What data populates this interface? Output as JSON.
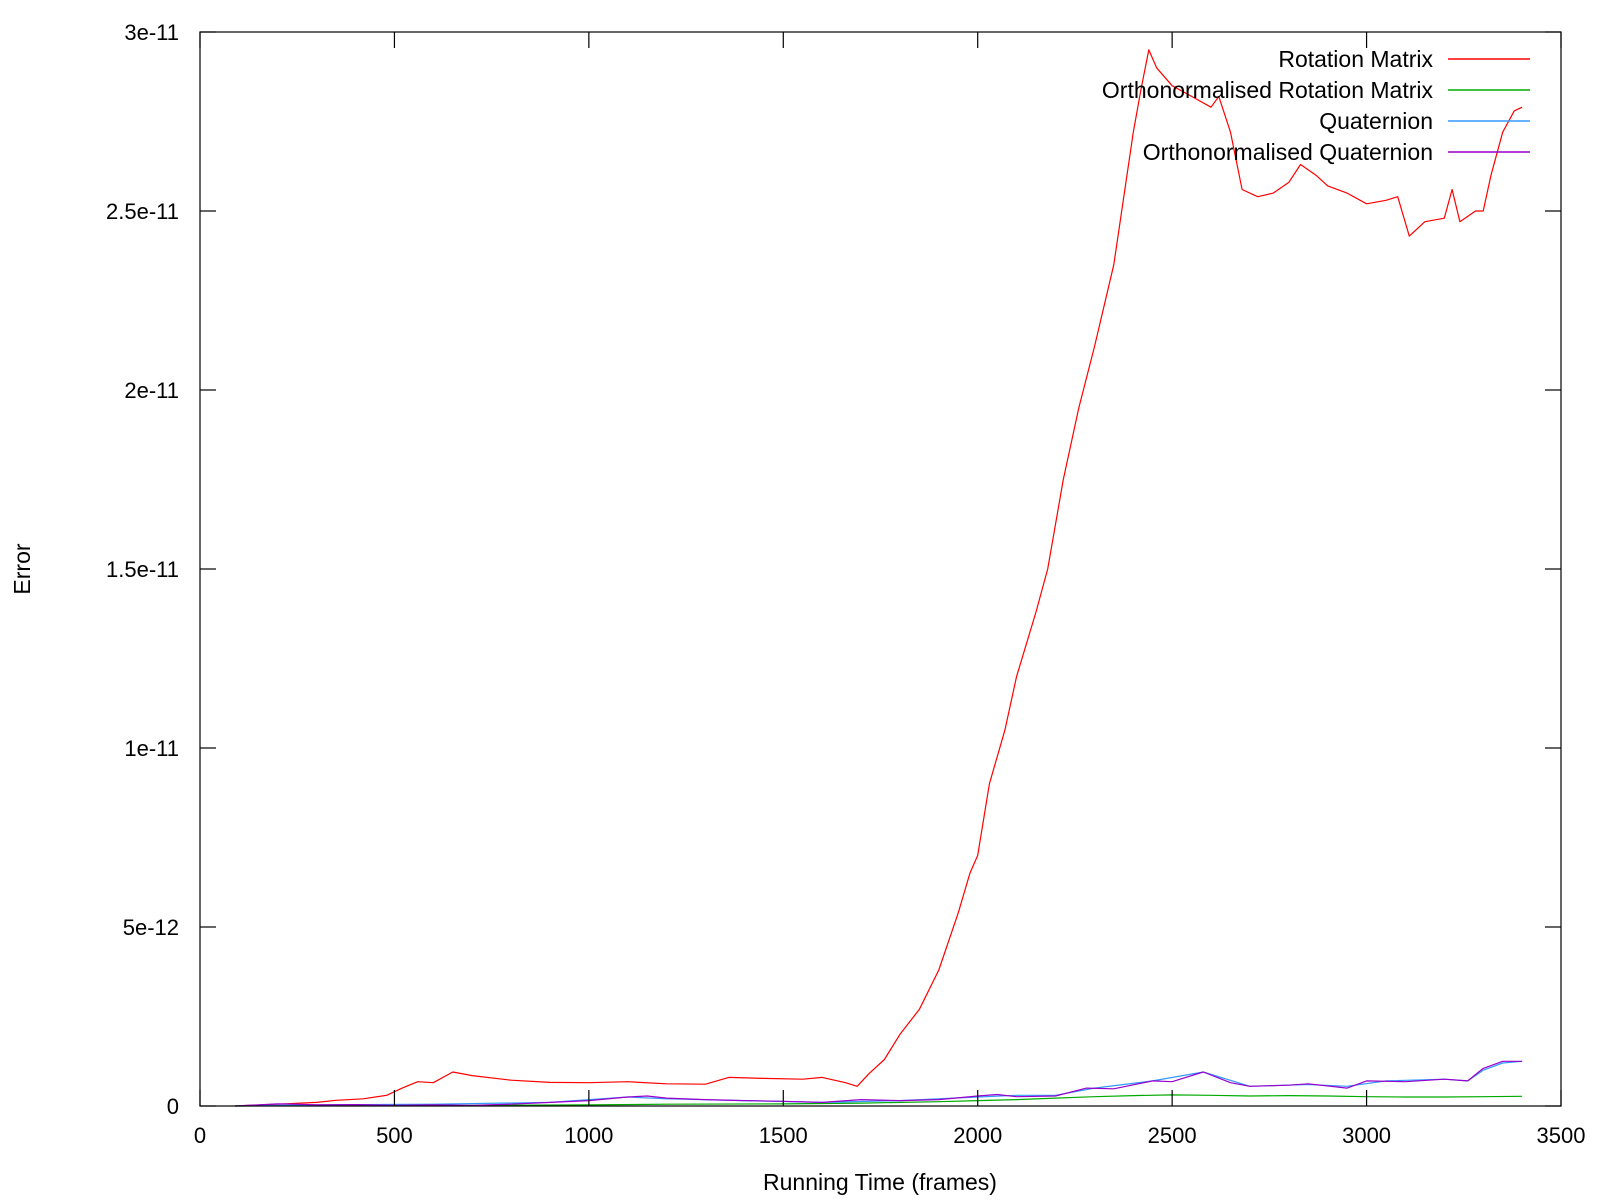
{
  "chart_data": {
    "type": "line",
    "title": "",
    "xlabel": "Running Time (frames)",
    "ylabel": "Error",
    "xlim": [
      0,
      3500
    ],
    "ylim": [
      0,
      3e-11
    ],
    "x_ticks": [
      {
        "value": 0,
        "label": "0"
      },
      {
        "value": 500,
        "label": "500"
      },
      {
        "value": 1000,
        "label": "1000"
      },
      {
        "value": 1500,
        "label": "1500"
      },
      {
        "value": 2000,
        "label": "2000"
      },
      {
        "value": 2500,
        "label": "2500"
      },
      {
        "value": 3000,
        "label": "3000"
      },
      {
        "value": 3500,
        "label": "3500"
      }
    ],
    "y_ticks": [
      {
        "value": 0,
        "label": "0"
      },
      {
        "value": 5e-12,
        "label": "5e-12"
      },
      {
        "value": 1e-11,
        "label": "1e-11"
      },
      {
        "value": 1.5e-11,
        "label": "1.5e-11"
      },
      {
        "value": 2e-11,
        "label": "2e-11"
      },
      {
        "value": 2.5e-11,
        "label": "2.5e-11"
      },
      {
        "value": 3e-11,
        "label": "3e-11"
      }
    ],
    "grid": false,
    "legend_position": "top-right",
    "series": [
      {
        "name": "Rotation Matrix",
        "color": "#ff0000",
        "points": [
          [
            90,
            0
          ],
          [
            200,
            5e-14
          ],
          [
            300,
            1e-13
          ],
          [
            350,
            1.6e-13
          ],
          [
            420,
            2e-13
          ],
          [
            480,
            3e-13
          ],
          [
            520,
            5e-13
          ],
          [
            560,
            6.8e-13
          ],
          [
            600,
            6.5e-13
          ],
          [
            650,
            9.5e-13
          ],
          [
            700,
            8.5e-13
          ],
          [
            800,
            7.2e-13
          ],
          [
            900,
            6.6e-13
          ],
          [
            1000,
            6.5e-13
          ],
          [
            1100,
            6.8e-13
          ],
          [
            1200,
            6.2e-13
          ],
          [
            1300,
            6.1e-13
          ],
          [
            1360,
            8e-13
          ],
          [
            1450,
            7.7e-13
          ],
          [
            1550,
            7.5e-13
          ],
          [
            1600,
            8e-13
          ],
          [
            1660,
            6.5e-13
          ],
          [
            1690,
            5.5e-13
          ],
          [
            1720,
            9e-13
          ],
          [
            1760,
            1.3e-12
          ],
          [
            1800,
            2e-12
          ],
          [
            1850,
            2.7e-12
          ],
          [
            1900,
            3.8e-12
          ],
          [
            1950,
            5.4e-12
          ],
          [
            1980,
            6.5e-12
          ],
          [
            2000,
            7e-12
          ],
          [
            2030,
            9e-12
          ],
          [
            2070,
            1.05e-11
          ],
          [
            2100,
            1.2e-11
          ],
          [
            2150,
            1.38e-11
          ],
          [
            2180,
            1.5e-11
          ],
          [
            2220,
            1.75e-11
          ],
          [
            2260,
            1.95e-11
          ],
          [
            2300,
            2.12e-11
          ],
          [
            2350,
            2.35e-11
          ],
          [
            2400,
            2.72e-11
          ],
          [
            2420,
            2.84e-11
          ],
          [
            2440,
            2.95e-11
          ],
          [
            2460,
            2.9e-11
          ],
          [
            2500,
            2.85e-11
          ],
          [
            2550,
            2.82e-11
          ],
          [
            2600,
            2.79e-11
          ],
          [
            2620,
            2.82e-11
          ],
          [
            2650,
            2.72e-11
          ],
          [
            2680,
            2.56e-11
          ],
          [
            2720,
            2.54e-11
          ],
          [
            2760,
            2.55e-11
          ],
          [
            2800,
            2.58e-11
          ],
          [
            2830,
            2.63e-11
          ],
          [
            2870,
            2.6e-11
          ],
          [
            2900,
            2.57e-11
          ],
          [
            2950,
            2.55e-11
          ],
          [
            3000,
            2.52e-11
          ],
          [
            3050,
            2.53e-11
          ],
          [
            3080,
            2.54e-11
          ],
          [
            3110,
            2.43e-11
          ],
          [
            3150,
            2.47e-11
          ],
          [
            3200,
            2.48e-11
          ],
          [
            3220,
            2.56e-11
          ],
          [
            3240,
            2.47e-11
          ],
          [
            3280,
            2.5e-11
          ],
          [
            3300,
            2.5e-11
          ],
          [
            3320,
            2.6e-11
          ],
          [
            3350,
            2.72e-11
          ],
          [
            3380,
            2.78e-11
          ],
          [
            3400,
            2.79e-11
          ]
        ]
      },
      {
        "name": "Orthonormalised Rotation Matrix",
        "color": "#00aa00",
        "points": [
          [
            90,
            0
          ],
          [
            600,
            1e-14
          ],
          [
            1000,
            3e-14
          ],
          [
            1200,
            5e-14
          ],
          [
            1500,
            6e-14
          ],
          [
            1700,
            8e-14
          ],
          [
            1900,
            1.2e-13
          ],
          [
            2000,
            1.5e-13
          ],
          [
            2100,
            1.8e-13
          ],
          [
            2200,
            2.2e-13
          ],
          [
            2300,
            2.6e-13
          ],
          [
            2400,
            2.9e-13
          ],
          [
            2500,
            3.1e-13
          ],
          [
            2600,
            3e-13
          ],
          [
            2700,
            2.8e-13
          ],
          [
            2800,
            2.9e-13
          ],
          [
            2900,
            2.8e-13
          ],
          [
            3000,
            2.6e-13
          ],
          [
            3100,
            2.5e-13
          ],
          [
            3200,
            2.5e-13
          ],
          [
            3300,
            2.6e-13
          ],
          [
            3400,
            2.7e-13
          ]
        ]
      },
      {
        "name": "Quaternion",
        "color": "#3399ff",
        "points": [
          [
            90,
            0
          ],
          [
            300,
            3e-14
          ],
          [
            600,
            5e-14
          ],
          [
            900,
            1e-13
          ],
          [
            1100,
            2.5e-13
          ],
          [
            1200,
            2e-13
          ],
          [
            1400,
            1.5e-13
          ],
          [
            1600,
            1e-13
          ],
          [
            1800,
            1.5e-13
          ],
          [
            2000,
            2.5e-13
          ],
          [
            2100,
            3e-13
          ],
          [
            2200,
            3e-13
          ],
          [
            2300,
            5e-13
          ],
          [
            2450,
            7e-13
          ],
          [
            2580,
            9.5e-13
          ],
          [
            2700,
            5.5e-13
          ],
          [
            2850,
            6e-13
          ],
          [
            2950,
            5.5e-13
          ],
          [
            3050,
            7e-13
          ],
          [
            3200,
            7.5e-13
          ],
          [
            3260,
            7e-13
          ],
          [
            3300,
            1e-12
          ],
          [
            3350,
            1.2e-12
          ],
          [
            3400,
            1.25e-12
          ]
        ]
      },
      {
        "name": "Orthonormalised Quaternion",
        "color": "#9900cc",
        "points": [
          [
            90,
            0
          ],
          [
            200,
            6e-14
          ],
          [
            250,
            5e-14
          ],
          [
            300,
            3e-14
          ],
          [
            400,
            4e-14
          ],
          [
            500,
            2e-14
          ],
          [
            600,
            3e-14
          ],
          [
            700,
            2e-14
          ],
          [
            800,
            5e-14
          ],
          [
            900,
            1e-13
          ],
          [
            1000,
            1.5e-13
          ],
          [
            1100,
            2.5e-13
          ],
          [
            1150,
            2.8e-13
          ],
          [
            1200,
            2.2e-13
          ],
          [
            1300,
            1.8e-13
          ],
          [
            1400,
            1.5e-13
          ],
          [
            1500,
            1.3e-13
          ],
          [
            1600,
            1e-13
          ],
          [
            1700,
            1.8e-13
          ],
          [
            1800,
            1.5e-13
          ],
          [
            1900,
            1.8e-13
          ],
          [
            2000,
            2.8e-13
          ],
          [
            2050,
            3.2e-13
          ],
          [
            2100,
            2.6e-13
          ],
          [
            2200,
            2.8e-13
          ],
          [
            2280,
            5e-13
          ],
          [
            2350,
            4.8e-13
          ],
          [
            2450,
            7e-13
          ],
          [
            2500,
            6.8e-13
          ],
          [
            2580,
            9.5e-13
          ],
          [
            2650,
            6.5e-13
          ],
          [
            2700,
            5.5e-13
          ],
          [
            2800,
            5.8e-13
          ],
          [
            2850,
            6.2e-13
          ],
          [
            2950,
            5e-13
          ],
          [
            3000,
            7e-13
          ],
          [
            3100,
            6.8e-13
          ],
          [
            3200,
            7.5e-13
          ],
          [
            3260,
            7e-13
          ],
          [
            3300,
            1.05e-12
          ],
          [
            3350,
            1.25e-12
          ],
          [
            3400,
            1.25e-12
          ]
        ]
      }
    ]
  }
}
